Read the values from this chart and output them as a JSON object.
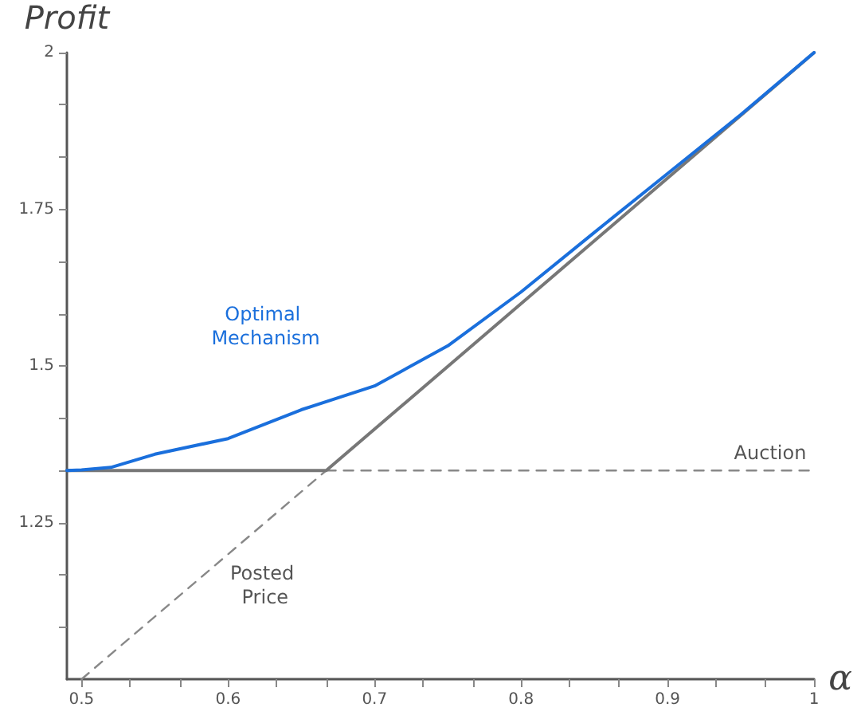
{
  "chart_data": {
    "type": "line",
    "xlabel": "α",
    "ylabel": "Profit",
    "xlim": [
      0.49,
      1
    ],
    "ylim": [
      1,
      2
    ],
    "xticks": [
      0.5,
      {
        "value": 0.533,
        "label": null
      },
      {
        "value": 0.567,
        "label": null
      },
      0.6,
      {
        "value": 0.633,
        "label": null
      },
      {
        "value": 0.667,
        "label": null
      },
      0.7,
      {
        "value": 0.733,
        "label": null
      },
      {
        "value": 0.767,
        "label": null
      },
      0.8,
      {
        "value": 0.833,
        "label": null
      },
      {
        "value": 0.867,
        "label": null
      },
      0.9,
      {
        "value": 0.933,
        "label": null
      },
      {
        "value": 0.967,
        "label": null
      },
      1
    ],
    "yticks": [
      {
        "value": 1.083,
        "label": null
      },
      {
        "value": 1.167,
        "label": null
      },
      1.25,
      {
        "value": 1.333,
        "label": null
      },
      {
        "value": 1.417,
        "label": null
      },
      1.5,
      {
        "value": 1.583,
        "label": null
      },
      {
        "value": 1.667,
        "label": null
      },
      1.75,
      {
        "value": 1.833,
        "label": null
      },
      {
        "value": 1.917,
        "label": null
      },
      2
    ],
    "grid": false,
    "marker": "none",
    "series": [
      {
        "name": "Optimal Mechanism",
        "color": "#1a6fdc",
        "line_style": "solid",
        "x": [
          0.49,
          0.5,
          0.52,
          0.55,
          0.6,
          0.65,
          0.7,
          0.75,
          0.8,
          0.85,
          0.9,
          0.95,
          1
        ],
        "values": [
          1.333,
          1.334,
          1.338,
          1.359,
          1.384,
          1.43,
          1.468,
          1.532,
          1.618,
          1.713,
          1.807,
          1.901,
          2
        ]
      },
      {
        "color": "#777777",
        "line_style": "solid",
        "x": [
          0.49,
          0.667,
          1
        ],
        "values": [
          1.333,
          1.333,
          2
        ]
      },
      {
        "name": "Auction",
        "color": "#888888",
        "line_style": "dashed",
        "x": [
          0.667,
          1
        ],
        "values": [
          1.333,
          1.333
        ]
      },
      {
        "name": "Posted Price",
        "color": "#888888",
        "line_style": "dashed",
        "x": [
          0.5,
          0.667
        ],
        "values": [
          1,
          1.333
        ]
      }
    ]
  }
}
